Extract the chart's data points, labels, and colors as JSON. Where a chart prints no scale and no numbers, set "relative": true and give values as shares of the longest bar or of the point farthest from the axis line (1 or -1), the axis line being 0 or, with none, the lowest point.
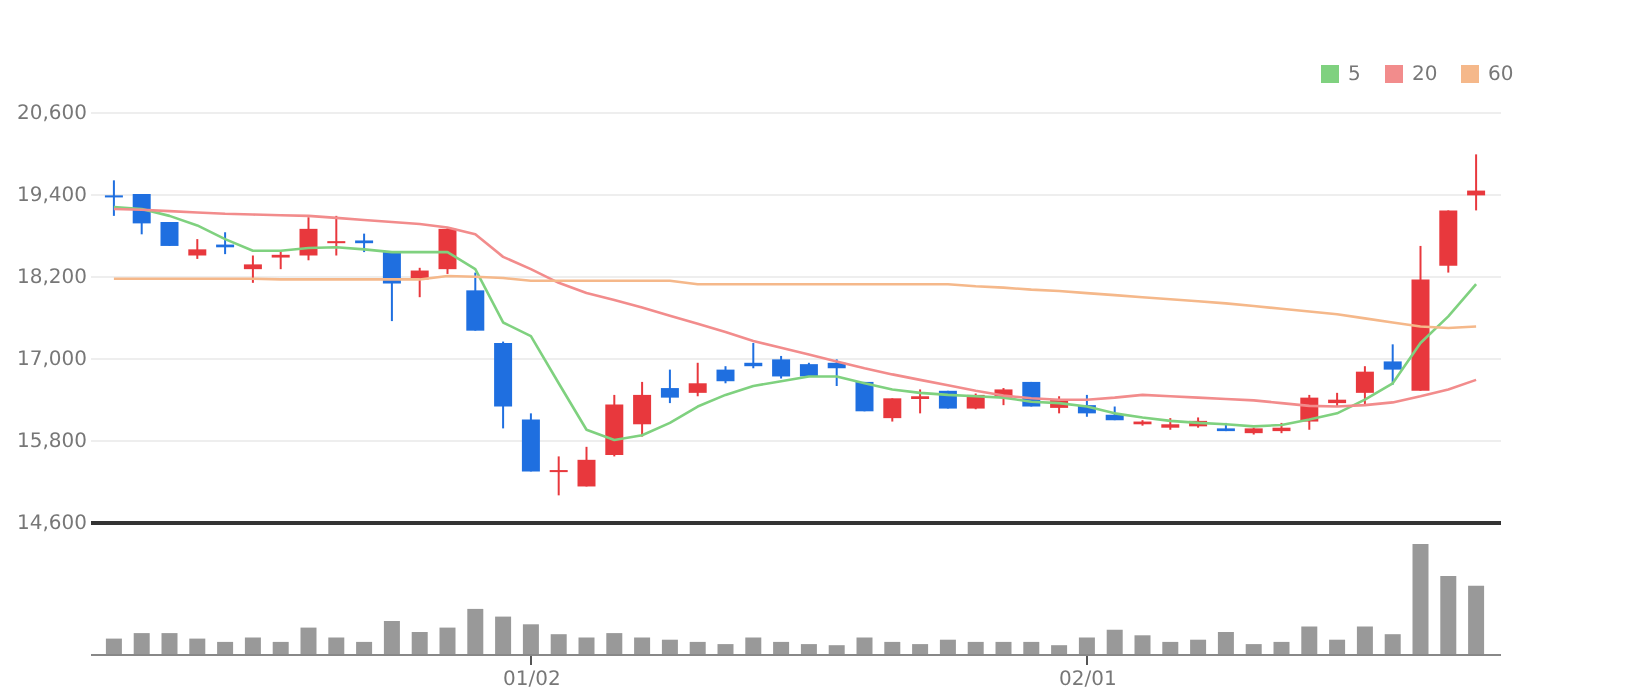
{
  "chart_data": [
    {
      "type": "candlestick",
      "categories": [
        null,
        null,
        null,
        null,
        null,
        null,
        null,
        null,
        null,
        null,
        null,
        null,
        null,
        null,
        null,
        null,
        null,
        null,
        null,
        null,
        null,
        null,
        null,
        null,
        null,
        null,
        null,
        null,
        null,
        null,
        null,
        null,
        null,
        null,
        null,
        null,
        null,
        null,
        null,
        null,
        null,
        null,
        null,
        null,
        null,
        null,
        null,
        null,
        null,
        null
      ],
      "ohlc": [
        [
          19380,
          19600,
          19080,
          19350
        ],
        [
          19400,
          19400,
          18810,
          18970
        ],
        [
          18990,
          18990,
          18640,
          18640
        ],
        [
          18500,
          18740,
          18450,
          18590
        ],
        [
          18660,
          18840,
          18520,
          18620
        ],
        [
          18300,
          18500,
          18100,
          18370
        ],
        [
          18470,
          18570,
          18300,
          18510
        ],
        [
          18500,
          19060,
          18430,
          18890
        ],
        [
          18680,
          19080,
          18500,
          18710
        ],
        [
          18720,
          18820,
          18550,
          18680
        ],
        [
          18550,
          18550,
          17540,
          18090
        ],
        [
          18150,
          18320,
          17890,
          18280
        ],
        [
          18300,
          18900,
          18230,
          18890
        ],
        [
          17990,
          18250,
          17400,
          17400
        ],
        [
          17220,
          17240,
          15970,
          16290
        ],
        [
          16100,
          16190,
          15340,
          15340
        ],
        [
          15330,
          15560,
          14990,
          15360
        ],
        [
          15120,
          15700,
          15120,
          15510
        ],
        [
          15580,
          16460,
          15560,
          16320
        ],
        [
          16030,
          16650,
          15850,
          16460
        ],
        [
          16560,
          16830,
          16340,
          16420
        ],
        [
          16490,
          16930,
          16440,
          16630
        ],
        [
          16830,
          16880,
          16630,
          16660
        ],
        [
          16930,
          17220,
          16850,
          16880
        ],
        [
          16980,
          17030,
          16700,
          16730
        ],
        [
          16910,
          16930,
          16730,
          16730
        ],
        [
          16930,
          16980,
          16590,
          16850
        ],
        [
          16650,
          16650,
          16220,
          16220
        ],
        [
          16120,
          16410,
          16070,
          16410
        ],
        [
          16400,
          16540,
          16190,
          16440
        ],
        [
          16520,
          16520,
          16260,
          16260
        ],
        [
          16260,
          16480,
          16250,
          16460
        ],
        [
          16420,
          16560,
          16310,
          16540
        ],
        [
          16650,
          16650,
          16290,
          16290
        ],
        [
          16270,
          16440,
          16190,
          16390
        ],
        [
          16310,
          16460,
          16140,
          16190
        ],
        [
          16170,
          16290,
          16090,
          16090
        ],
        [
          16030,
          16090,
          16010,
          16070
        ],
        [
          15980,
          16120,
          15950,
          16030
        ],
        [
          16000,
          16130,
          15980,
          16080
        ],
        [
          15970,
          16050,
          15930,
          15930
        ],
        [
          15900,
          15980,
          15880,
          15970
        ],
        [
          15930,
          16050,
          15900,
          15980
        ],
        [
          16070,
          16460,
          15950,
          16420
        ],
        [
          16340,
          16490,
          16290,
          16390
        ],
        [
          16490,
          16880,
          16320,
          16800
        ],
        [
          16950,
          17200,
          16610,
          16830
        ],
        [
          16520,
          18640,
          16520,
          18150
        ],
        [
          18350,
          19160,
          18250,
          19160
        ],
        [
          19380,
          19980,
          19160,
          19450
        ]
      ],
      "colors": [
        "#1f6fe0",
        "#1f6fe0",
        "#1f6fe0",
        "#e8383d",
        "#1f6fe0",
        "#e8383d",
        "#e8383d",
        "#e8383d",
        "#e8383d",
        "#1f6fe0",
        "#1f6fe0",
        "#e8383d",
        "#e8383d",
        "#1f6fe0",
        "#1f6fe0",
        "#1f6fe0",
        "#e8383d",
        "#e8383d",
        "#e8383d",
        "#e8383d",
        "#1f6fe0",
        "#e8383d",
        "#1f6fe0",
        "#1f6fe0",
        "#1f6fe0",
        "#1f6fe0",
        "#1f6fe0",
        "#1f6fe0",
        "#e8383d",
        "#e8383d",
        "#1f6fe0",
        "#e8383d",
        "#e8383d",
        "#1f6fe0",
        "#e8383d",
        "#1f6fe0",
        "#1f6fe0",
        "#e8383d",
        "#e8383d",
        "#e8383d",
        "#1f6fe0",
        "#e8383d",
        "#e8383d",
        "#e8383d",
        "#e8383d",
        "#e8383d",
        "#1f6fe0",
        "#e8383d",
        "#e8383d",
        "#e8383d"
      ],
      "series": [
        {
          "name": "5",
          "type": "line",
          "color": "#7fd17f",
          "values": [
            19210,
            19180,
            19080,
            18940,
            18740,
            18570,
            18570,
            18610,
            18620,
            18590,
            18550,
            18550,
            18550,
            18300,
            17520,
            17320,
            16630,
            15950,
            15800,
            15870,
            16050,
            16290,
            16460,
            16590,
            16660,
            16730,
            16730,
            16630,
            16540,
            16490,
            16460,
            16440,
            16420,
            16360,
            16340,
            16290,
            16190,
            16130,
            16080,
            16050,
            16030,
            16000,
            16020,
            16100,
            16190,
            16390,
            16630,
            17220,
            17610,
            18080
          ]
        },
        {
          "name": "20",
          "type": "line",
          "color": "#f28c8c",
          "values": [
            19180,
            19170,
            19150,
            19130,
            19110,
            19100,
            19090,
            19080,
            19050,
            19020,
            18990,
            18960,
            18910,
            18810,
            18480,
            18300,
            18100,
            17950,
            17850,
            17740,
            17620,
            17500,
            17380,
            17250,
            17150,
            17050,
            16950,
            16850,
            16760,
            16680,
            16600,
            16520,
            16450,
            16410,
            16390,
            16390,
            16420,
            16460,
            16440,
            16420,
            16400,
            16380,
            16340,
            16300,
            16290,
            16310,
            16350,
            16440,
            16540,
            16680
          ]
        },
        {
          "name": "60",
          "type": "line",
          "color": "#f5b88a",
          "values": [
            18160,
            18160,
            18160,
            18160,
            18160,
            18160,
            18150,
            18150,
            18150,
            18150,
            18150,
            18150,
            18200,
            18190,
            18170,
            18130,
            18130,
            18130,
            18130,
            18130,
            18130,
            18080,
            18080,
            18080,
            18080,
            18080,
            18080,
            18080,
            18080,
            18080,
            18080,
            18050,
            18030,
            18000,
            17980,
            17950,
            17920,
            17890,
            17860,
            17830,
            17800,
            17760,
            17720,
            17680,
            17640,
            17580,
            17520,
            17460,
            17440,
            17460
          ]
        }
      ],
      "ylim": [
        14600,
        20600
      ],
      "yticks": [
        {
          "value": 14600,
          "label": "14,600"
        },
        {
          "value": 15800,
          "label": "15,800"
        },
        {
          "value": 17000,
          "label": "17,000"
        },
        {
          "value": 18200,
          "label": "18,200"
        },
        {
          "value": 19400,
          "label": "19,400"
        },
        {
          "value": 20600,
          "label": "20,600"
        }
      ],
      "grid": "y",
      "legend": "top right",
      "tick_labels": "y"
    },
    {
      "type": "bar",
      "relative": true,
      "color": "#999999",
      "tick_labels": "x",
      "categories": [
        null,
        null,
        null,
        null,
        null,
        null,
        null,
        null,
        null,
        null,
        null,
        null,
        null,
        null,
        null,
        "01/02",
        null,
        null,
        null,
        null,
        null,
        null,
        null,
        null,
        null,
        null,
        null,
        null,
        null,
        null,
        null,
        null,
        null,
        null,
        null,
        "02/01",
        null,
        null,
        null,
        null,
        null,
        null,
        null,
        null,
        null,
        null,
        null,
        null,
        null,
        null
      ],
      "values": [
        0.14,
        0.19,
        0.19,
        0.14,
        0.11,
        0.15,
        0.11,
        0.24,
        0.15,
        0.11,
        0.3,
        0.2,
        0.24,
        0.41,
        0.34,
        0.27,
        0.18,
        0.15,
        0.19,
        0.15,
        0.13,
        0.11,
        0.09,
        0.15,
        0.11,
        0.09,
        0.08,
        0.15,
        0.11,
        0.09,
        0.13,
        0.11,
        0.11,
        0.11,
        0.08,
        0.15,
        0.22,
        0.17,
        0.11,
        0.13,
        0.2,
        0.09,
        0.11,
        0.25,
        0.13,
        0.25,
        0.18,
        1,
        0.71,
        0.62
      ]
    }
  ]
}
